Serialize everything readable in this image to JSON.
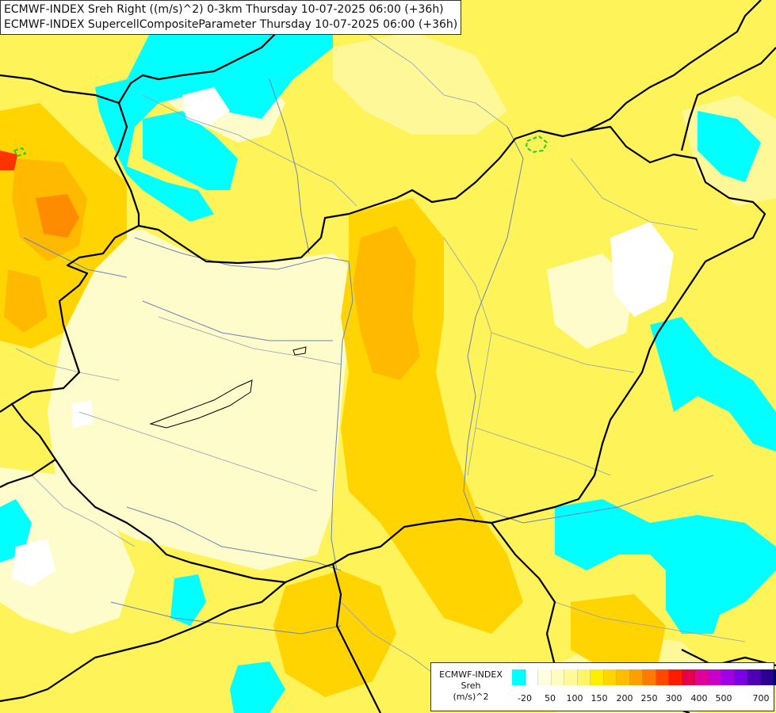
{
  "header": {
    "line1": "ECMWF-INDEX Sreh Right ((m/s)^2) 0-3km Thursday 10-07-2025 06:00 (+36h)",
    "line2": "ECMWF-INDEX SupercellCompositeParameter Thursday 10-07-2025 06:00 (+36h)"
  },
  "legend": {
    "line1": "ECMWF-INDEX",
    "line2": "Sreh",
    "line3": "(m/s)^2",
    "colors": [
      "#00ffff",
      "#ffffff",
      "#fffde0",
      "#fffcc0",
      "#fff99a",
      "#fff466",
      "#ffee00",
      "#ffd600",
      "#ffbe00",
      "#ffa000",
      "#ff7a00",
      "#ff4800",
      "#ff1a00",
      "#e6004c",
      "#e0009a",
      "#c800c8",
      "#a000e6",
      "#7a00e6",
      "#5000b4",
      "#2c0090",
      "#00006a"
    ],
    "ticks": [
      "-20",
      "50",
      "100",
      "150",
      "200",
      "250",
      "300",
      "400",
      "500",
      "700"
    ]
  },
  "map": {
    "colors": {
      "background": "#fff35a",
      "pale": "#fffccc",
      "light": "#fff899",
      "yellow": "#ffe800",
      "gold": "#ffd400",
      "orange": "#ffba00",
      "deep": "#ff8c00",
      "red": "#ff3300",
      "cyan": "#00ffff",
      "white": "#ffffff",
      "border": "#000000",
      "river": "#6b83b8",
      "region": "#8da0b0",
      "scp": "#22cc22"
    }
  }
}
